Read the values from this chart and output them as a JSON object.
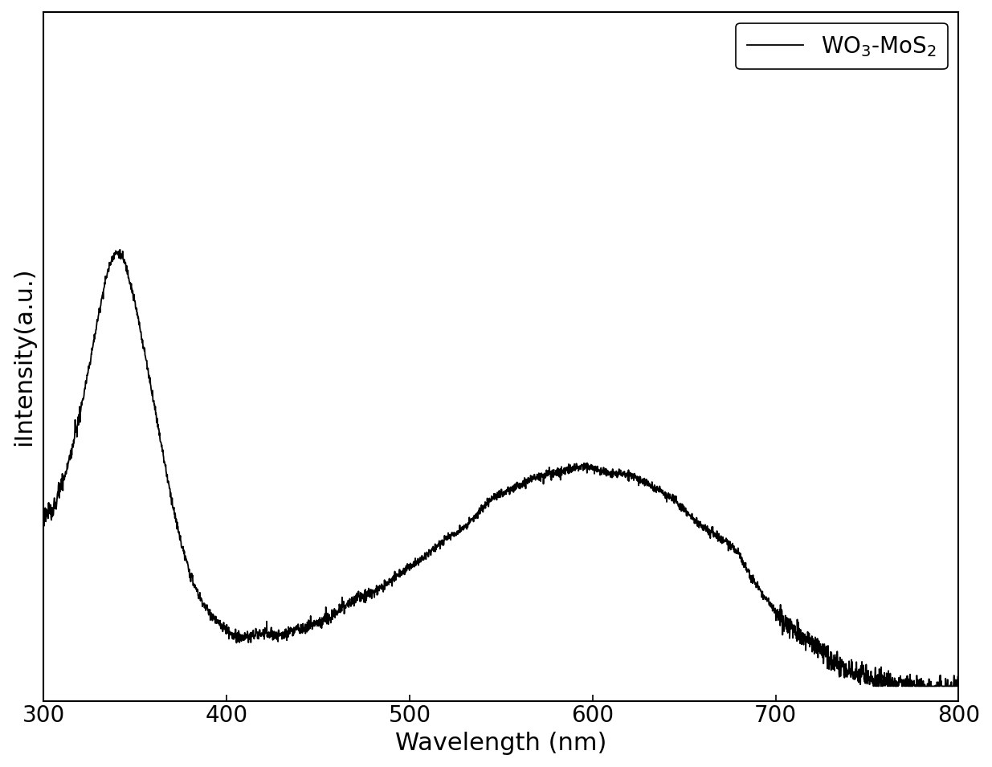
{
  "xlabel": "Wavelength (nm)",
  "ylabel": "iIntensity(a.u.)",
  "legend_label": "WO$_3$-MoS$_2$",
  "xlim": [
    300,
    800
  ],
  "ylim": [
    0.0,
    1.45
  ],
  "xticks": [
    300,
    400,
    500,
    600,
    700,
    800
  ],
  "line_color": "#000000",
  "line_width": 1.3,
  "background_color": "#ffffff",
  "xlabel_fontsize": 22,
  "ylabel_fontsize": 22,
  "tick_fontsize": 20,
  "legend_fontsize": 20
}
